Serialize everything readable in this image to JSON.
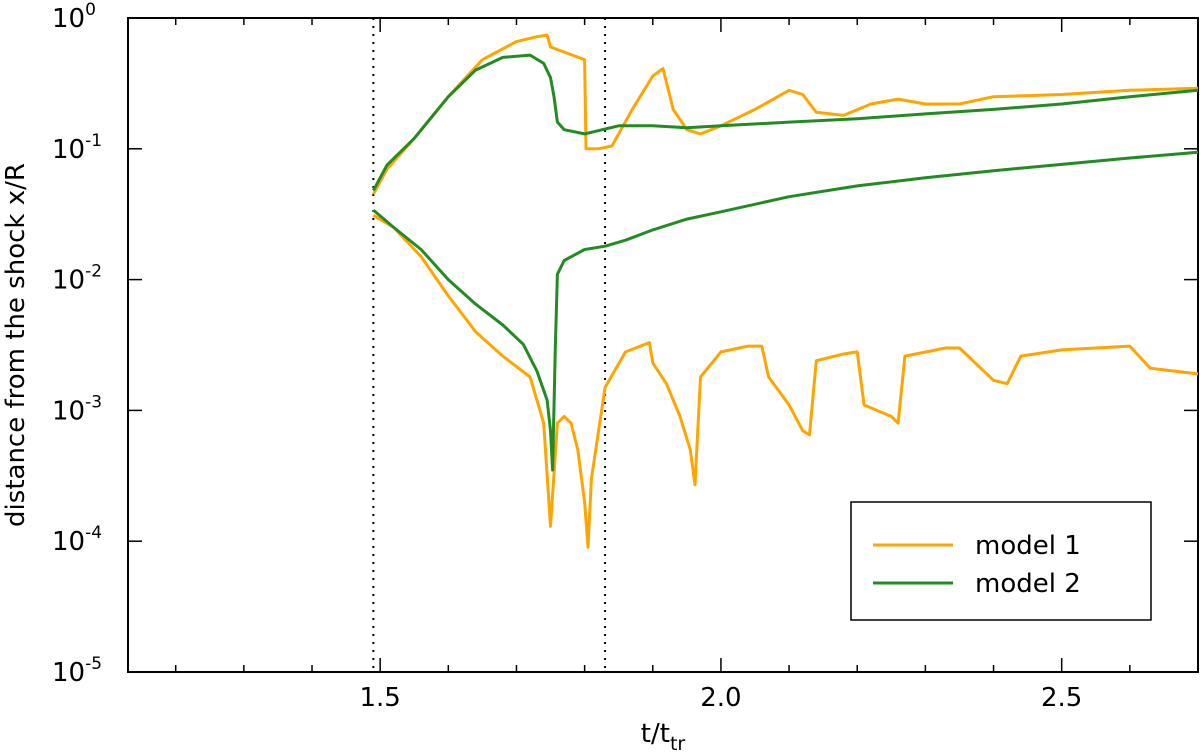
{
  "chart_data": {
    "type": "line",
    "xlabel": {
      "base": "t/t",
      "subscript": "tr"
    },
    "ylabel": "distance from the shock x/R",
    "xlim": [
      1.13,
      2.7
    ],
    "ylim": [
      1e-05,
      1
    ],
    "yscale": "log",
    "x_ticks": [
      {
        "value": 1.5,
        "label": "1.5"
      },
      {
        "value": 2.0,
        "label": "2.0"
      },
      {
        "value": 2.5,
        "label": "2.5"
      }
    ],
    "y_ticks": [
      {
        "value": 1,
        "base": "10",
        "exp": "0"
      },
      {
        "value": 0.1,
        "base": "10",
        "exp": "-1"
      },
      {
        "value": 0.01,
        "base": "10",
        "exp": "-2"
      },
      {
        "value": 0.001,
        "base": "10",
        "exp": "-3"
      },
      {
        "value": 0.0001,
        "base": "10",
        "exp": "-4"
      },
      {
        "value": 1e-05,
        "base": "10",
        "exp": "-5"
      }
    ],
    "vlines": [
      1.49,
      1.83
    ],
    "grid": false,
    "legend_position": "bottom-right",
    "series": [
      {
        "name": "model 1",
        "color": "#FFA500",
        "branch": "upper",
        "x": [
          1.49,
          1.51,
          1.55,
          1.6,
          1.65,
          1.7,
          1.73,
          1.745,
          1.75,
          1.8,
          1.802,
          1.805,
          1.82,
          1.84,
          1.87,
          1.9,
          1.915,
          1.93,
          1.95,
          1.97,
          2.0,
          2.05,
          2.1,
          2.12,
          2.14,
          2.18,
          2.22,
          2.26,
          2.3,
          2.35,
          2.4,
          2.5,
          2.6,
          2.7
        ],
        "y": [
          0.045,
          0.07,
          0.12,
          0.25,
          0.48,
          0.66,
          0.72,
          0.74,
          0.6,
          0.48,
          0.1,
          0.1,
          0.1,
          0.105,
          0.2,
          0.36,
          0.41,
          0.2,
          0.14,
          0.13,
          0.15,
          0.2,
          0.28,
          0.26,
          0.19,
          0.18,
          0.22,
          0.24,
          0.22,
          0.22,
          0.25,
          0.26,
          0.28,
          0.29
        ]
      },
      {
        "name": "model 1",
        "color": "#FFA500",
        "branch": "lower",
        "x": [
          1.49,
          1.52,
          1.56,
          1.6,
          1.64,
          1.68,
          1.72,
          1.74,
          1.75,
          1.76,
          1.77,
          1.78,
          1.79,
          1.8,
          1.805,
          1.81,
          1.83,
          1.86,
          1.895,
          1.9,
          1.92,
          1.94,
          1.955,
          1.962,
          1.97,
          2.0,
          2.04,
          2.06,
          2.07,
          2.1,
          2.12,
          2.13,
          2.14,
          2.18,
          2.2,
          2.21,
          2.25,
          2.26,
          2.27,
          2.33,
          2.35,
          2.4,
          2.42,
          2.44,
          2.5,
          2.6,
          2.63,
          2.7
        ],
        "y": [
          0.031,
          0.025,
          0.015,
          0.0075,
          0.004,
          0.0026,
          0.0018,
          0.0008,
          0.00013,
          0.0008,
          0.0009,
          0.0008,
          0.0005,
          0.0002,
          9e-05,
          0.0003,
          0.0015,
          0.0028,
          0.0033,
          0.0023,
          0.0016,
          0.0009,
          0.0005,
          0.00027,
          0.0018,
          0.0028,
          0.0031,
          0.0031,
          0.0018,
          0.0011,
          0.0007,
          0.00065,
          0.0024,
          0.0027,
          0.0028,
          0.0011,
          0.0009,
          0.0008,
          0.0026,
          0.003,
          0.003,
          0.0017,
          0.0016,
          0.0026,
          0.0029,
          0.0031,
          0.0021,
          0.0019
        ]
      },
      {
        "name": "model 2",
        "color": "#228B22",
        "branch": "upper",
        "x": [
          1.49,
          1.51,
          1.55,
          1.6,
          1.64,
          1.68,
          1.72,
          1.74,
          1.75,
          1.755,
          1.76,
          1.77,
          1.8,
          1.85,
          1.9,
          1.95,
          2.0,
          2.1,
          2.2,
          2.3,
          2.4,
          2.5,
          2.6,
          2.7
        ],
        "y": [
          0.048,
          0.075,
          0.12,
          0.25,
          0.4,
          0.5,
          0.52,
          0.45,
          0.35,
          0.25,
          0.16,
          0.14,
          0.13,
          0.15,
          0.15,
          0.145,
          0.15,
          0.16,
          0.17,
          0.185,
          0.2,
          0.22,
          0.25,
          0.28
        ]
      },
      {
        "name": "model 2",
        "color": "#228B22",
        "branch": "lower",
        "x": [
          1.49,
          1.52,
          1.56,
          1.6,
          1.64,
          1.68,
          1.71,
          1.73,
          1.745,
          1.75,
          1.753,
          1.757,
          1.76,
          1.77,
          1.8,
          1.83,
          1.86,
          1.9,
          1.95,
          2.0,
          2.1,
          2.2,
          2.3,
          2.4,
          2.5,
          2.6,
          2.7
        ],
        "y": [
          0.034,
          0.025,
          0.017,
          0.01,
          0.0065,
          0.0045,
          0.0032,
          0.002,
          0.0012,
          0.0007,
          0.00035,
          0.003,
          0.011,
          0.014,
          0.017,
          0.018,
          0.02,
          0.024,
          0.029,
          0.033,
          0.043,
          0.052,
          0.06,
          0.068,
          0.076,
          0.085,
          0.094
        ]
      }
    ],
    "legend": [
      {
        "label": "model 1",
        "color": "#FFA500"
      },
      {
        "label": "model 2",
        "color": "#228B22"
      }
    ]
  }
}
